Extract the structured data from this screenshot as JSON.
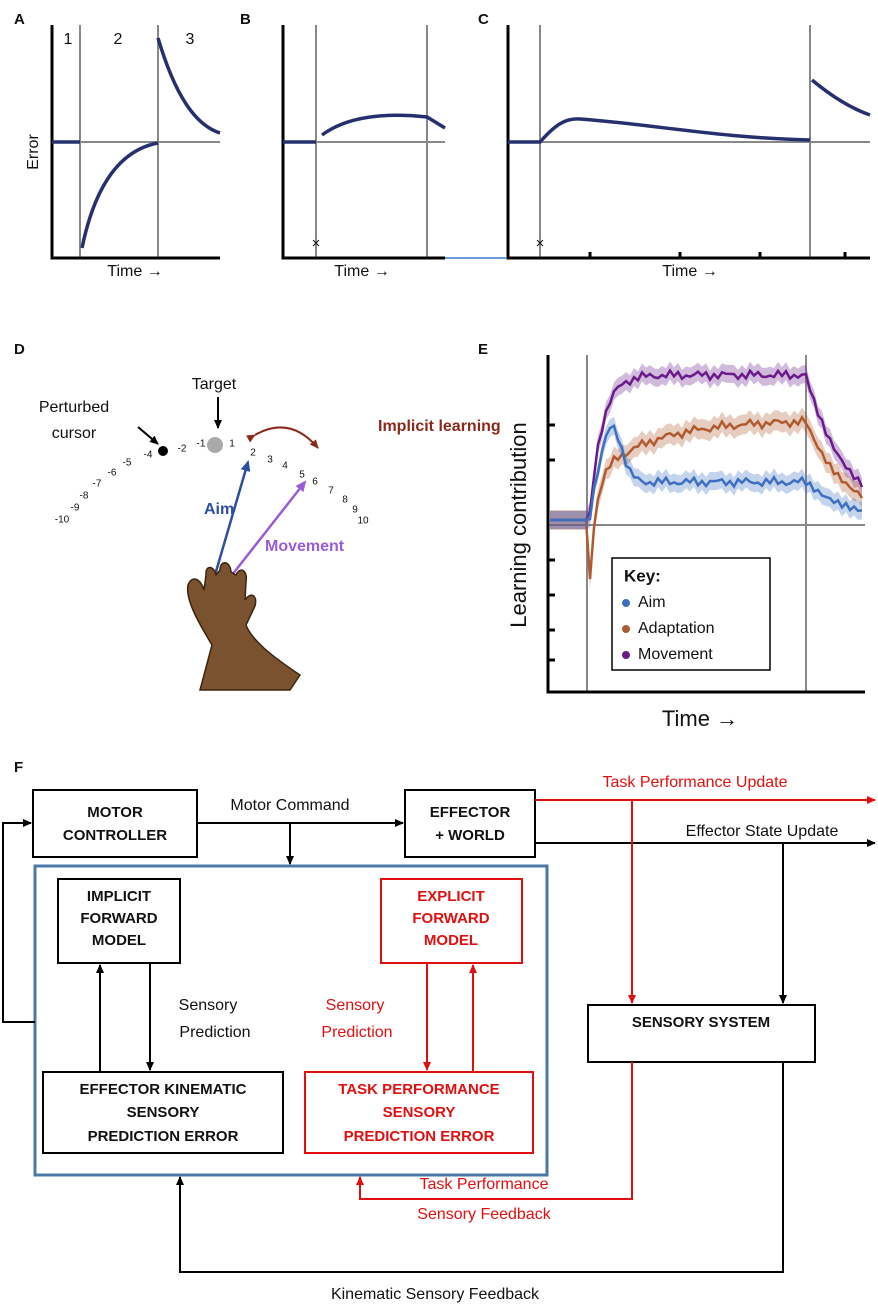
{
  "panels": {
    "a": {
      "label": "A",
      "phases": [
        "1",
        "2",
        "3"
      ],
      "ylabel": "Error",
      "xlabel": "Time →"
    },
    "b": {
      "label": "B",
      "marker": "×",
      "xlabel": "Time →"
    },
    "c": {
      "label": "C",
      "marker": "×",
      "xlabel": "Time →"
    },
    "d": {
      "label": "D",
      "target": "Target",
      "cursor": [
        "Perturbed",
        "cursor"
      ],
      "implicit": "Implicit learning",
      "aim": "Aim",
      "movement": "Movement",
      "scale": [
        "-10",
        "-9",
        "-8",
        "-7",
        "-6",
        "-5",
        "-4",
        "-2",
        "-1",
        "1",
        "2",
        "3",
        "4",
        "5",
        "6",
        "7",
        "8",
        "9",
        "10"
      ]
    },
    "e": {
      "label": "E",
      "ylabel": "Learning contribution",
      "xlabel": "Time →",
      "key": {
        "title": "Key:",
        "items": [
          "Aim",
          "Adaptation",
          "Movement"
        ]
      }
    },
    "f": {
      "label": "F",
      "motor_controller": [
        "MOTOR",
        "CONTROLLER"
      ],
      "motor_command": "Motor Command",
      "effector": [
        "EFFECTOR",
        "+ WORLD"
      ],
      "task_update": "Task Performance Update",
      "state_update": "Effector State Update",
      "implicit_model": [
        "IMPLICIT",
        "FORWARD",
        "MODEL"
      ],
      "explicit_model": [
        "EXPLICIT",
        "FORWARD",
        "MODEL"
      ],
      "sensory_prediction": [
        "Sensory",
        "Prediction"
      ],
      "sensory_prediction_red": [
        "Sensory",
        "Prediction"
      ],
      "kinematic_error": [
        "EFFECTOR KINEMATIC",
        "SENSORY",
        "PREDICTION ERROR"
      ],
      "task_error": [
        "TASK PERFORMANCE",
        "SENSORY",
        "PREDICTION ERROR"
      ],
      "sensory_system": "SENSORY SYSTEM",
      "task_feedback": [
        "Task Performance",
        "Sensory Feedback"
      ],
      "kinematic_feedback": "Kinematic Sensory Feedback"
    }
  }
}
